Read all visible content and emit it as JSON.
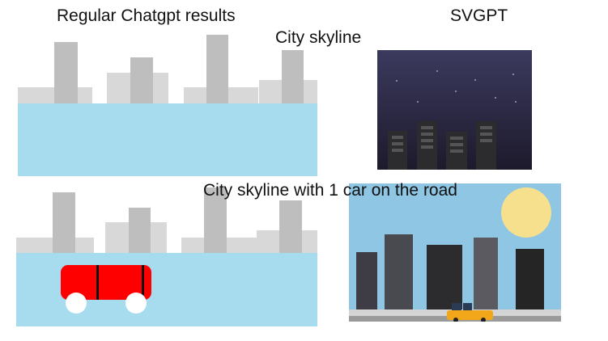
{
  "labels": {
    "regular_results": "Regular Chatgpt results",
    "svgpt": "SVGPT",
    "city_skyline": "City skyline",
    "city_skyline_with_car": "City skyline with 1 car on the road"
  },
  "colors": {
    "water": "#a7dbee",
    "building_light": "#d8d8d8",
    "building_dark": "#bebebe",
    "night_sky_top": "#3b3a5e",
    "night_sky_bottom": "#1d1a2c",
    "day_sky": "#8fc6e4",
    "sun": "#f6e08d",
    "car_red": "#ff0000",
    "taxi_yellow": "#f2a71b"
  }
}
